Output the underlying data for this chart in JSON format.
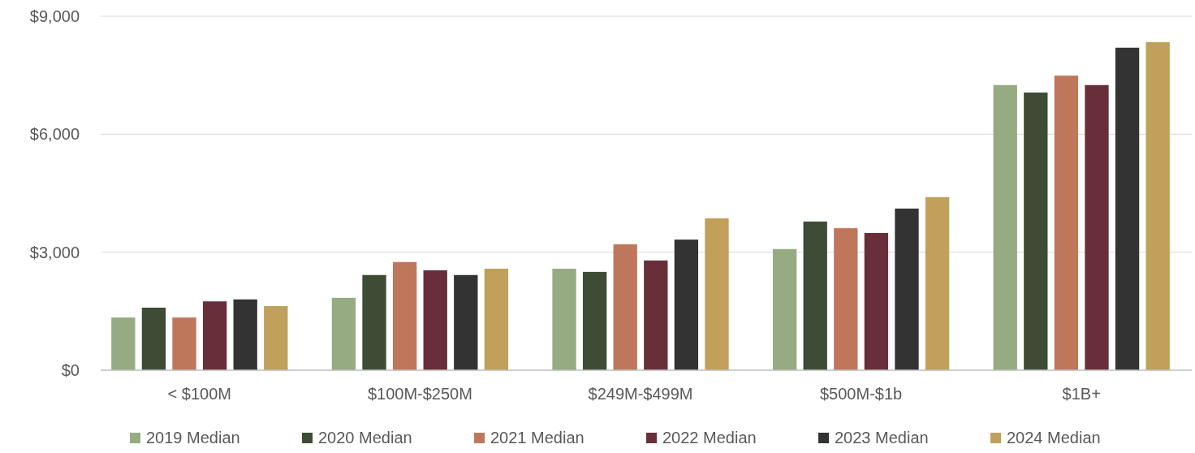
{
  "chart_data": {
    "type": "bar",
    "categories": [
      "< $100M",
      "$100M-$250M",
      "$249M-$499M",
      "$500M-$1b",
      "$1B+"
    ],
    "series": [
      {
        "name": "2019 Median",
        "color": "#97ab82",
        "values": [
          1340,
          1840,
          2580,
          3080,
          7250
        ]
      },
      {
        "name": "2020 Median",
        "color": "#3e4c36",
        "values": [
          1590,
          2420,
          2500,
          3780,
          7060
        ]
      },
      {
        "name": "2021 Median",
        "color": "#bf775c",
        "values": [
          1340,
          2750,
          3200,
          3610,
          7490
        ]
      },
      {
        "name": "2022 Median",
        "color": "#682f3a",
        "values": [
          1750,
          2540,
          2790,
          3490,
          7250
        ]
      },
      {
        "name": "2023 Median",
        "color": "#333333",
        "values": [
          1800,
          2420,
          3320,
          4110,
          8200
        ]
      },
      {
        "name": "2024 Median",
        "color": "#c0a05a",
        "values": [
          1630,
          2580,
          3860,
          4400,
          8340
        ]
      }
    ],
    "ylim": [
      0,
      9000
    ],
    "yticks": [
      {
        "value": 0,
        "label": "$0"
      },
      {
        "value": 3000,
        "label": "$3,000"
      },
      {
        "value": 6000,
        "label": "$6,000"
      },
      {
        "value": 9000,
        "label": "$9,000"
      }
    ],
    "grid": "y",
    "legend": "bottom"
  }
}
